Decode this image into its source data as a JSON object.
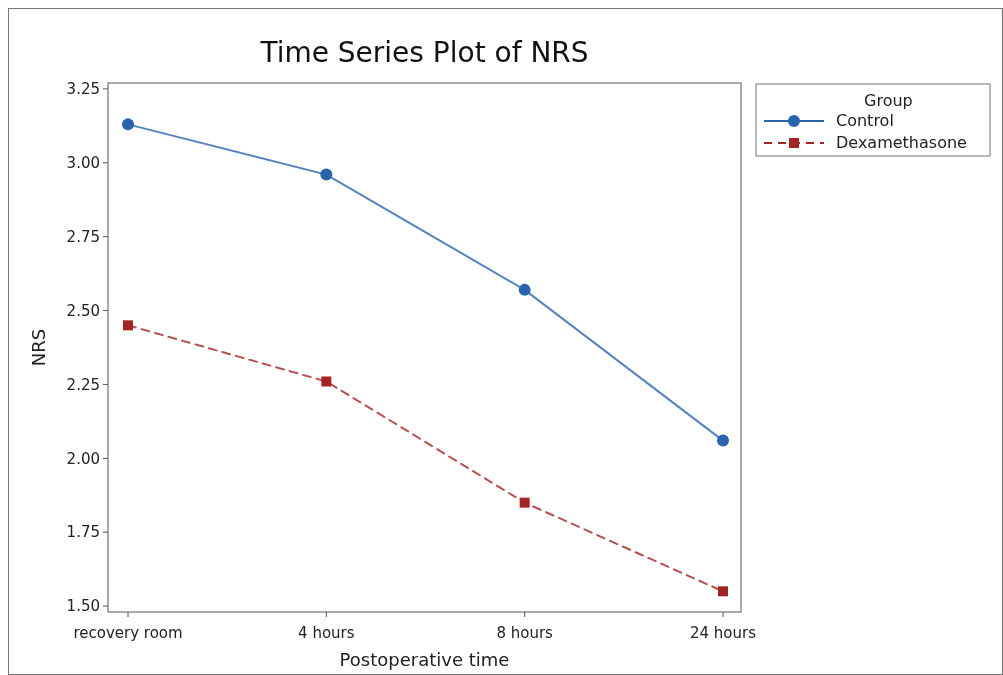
{
  "chart_data": {
    "type": "line",
    "title": "Time Series Plot of NRS",
    "xlabel": "Postoperative time",
    "ylabel": "NRS",
    "legend_title": "Group",
    "legend": "top right",
    "grid": false,
    "categories": [
      "recovery room",
      "4 hours",
      "8 hours",
      "24 hours"
    ],
    "ylim": [
      1.48,
      3.27
    ],
    "yticks": [
      {
        "value": 1.5,
        "label": "1.50"
      },
      {
        "value": 1.75,
        "label": "1.75"
      },
      {
        "value": 2,
        "label": "2.00"
      },
      {
        "value": 2.25,
        "label": "2.25"
      },
      {
        "value": 2.5,
        "label": "2.50"
      },
      {
        "value": 2.75,
        "label": "2.75"
      },
      {
        "value": 3,
        "label": "3.00"
      },
      {
        "value": 3.25,
        "label": "3.25"
      }
    ],
    "series": [
      {
        "name": "Control",
        "color": "#2a64ad",
        "marker": "circle",
        "line_style": "solid",
        "values": [
          3.13,
          2.96,
          2.57,
          2.06
        ]
      },
      {
        "name": "Dexamethasone",
        "color": "#a32424",
        "marker": "square",
        "line_style": "dashed",
        "values": [
          2.45,
          2.26,
          1.85,
          1.55
        ]
      }
    ]
  }
}
